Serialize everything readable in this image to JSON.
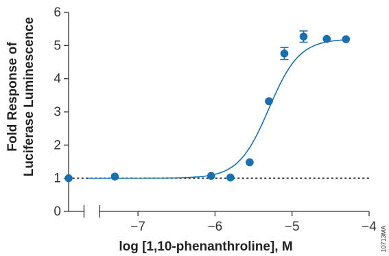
{
  "chart_data": {
    "type": "scatter",
    "xlabel": "log [1,10-phenanthroline], M",
    "ylabel_lines": [
      "Fold Response of",
      "Luciferase Luminescence"
    ],
    "xlim": [
      -7.9,
      -4.0
    ],
    "ylim": [
      0,
      6
    ],
    "x_axis_break": [
      -7.7,
      -7.5
    ],
    "x_ticks": [
      -7,
      -6,
      -5,
      -4
    ],
    "x_tick_labels": [
      "−7",
      "−6",
      "−5",
      "−4"
    ],
    "y_ticks": [
      0,
      1,
      2,
      3,
      4,
      5,
      6
    ],
    "y_tick_labels": [
      "0",
      "1",
      "2",
      "3",
      "4",
      "5",
      "6"
    ],
    "grid": false,
    "reference_line": {
      "y": 1,
      "style": "dotted"
    },
    "fit_curve": {
      "model": "sigmoidal dose-response",
      "bottom": 1.0,
      "top": 5.2,
      "log_ec50": -5.3,
      "hill_slope": 2.2
    },
    "points": [
      {
        "x": -7.9,
        "y": 1.0,
        "err": 0
      },
      {
        "x": -7.3,
        "y": 1.05,
        "err": 0
      },
      {
        "x": -6.05,
        "y": 1.07,
        "err": 0
      },
      {
        "x": -5.8,
        "y": 1.02,
        "err": 0
      },
      {
        "x": -5.55,
        "y": 1.48,
        "err": 0
      },
      {
        "x": -5.3,
        "y": 3.32,
        "err": 0
      },
      {
        "x": -5.1,
        "y": 4.76,
        "err": 0.18
      },
      {
        "x": -4.85,
        "y": 5.27,
        "err": 0.17
      },
      {
        "x": -4.55,
        "y": 5.2,
        "err": 0
      },
      {
        "x": -4.3,
        "y": 5.19,
        "err": 0
      }
    ],
    "series_color": "#1a6fae",
    "reference_line_color": "#222222",
    "figure_code": "10713MA"
  }
}
